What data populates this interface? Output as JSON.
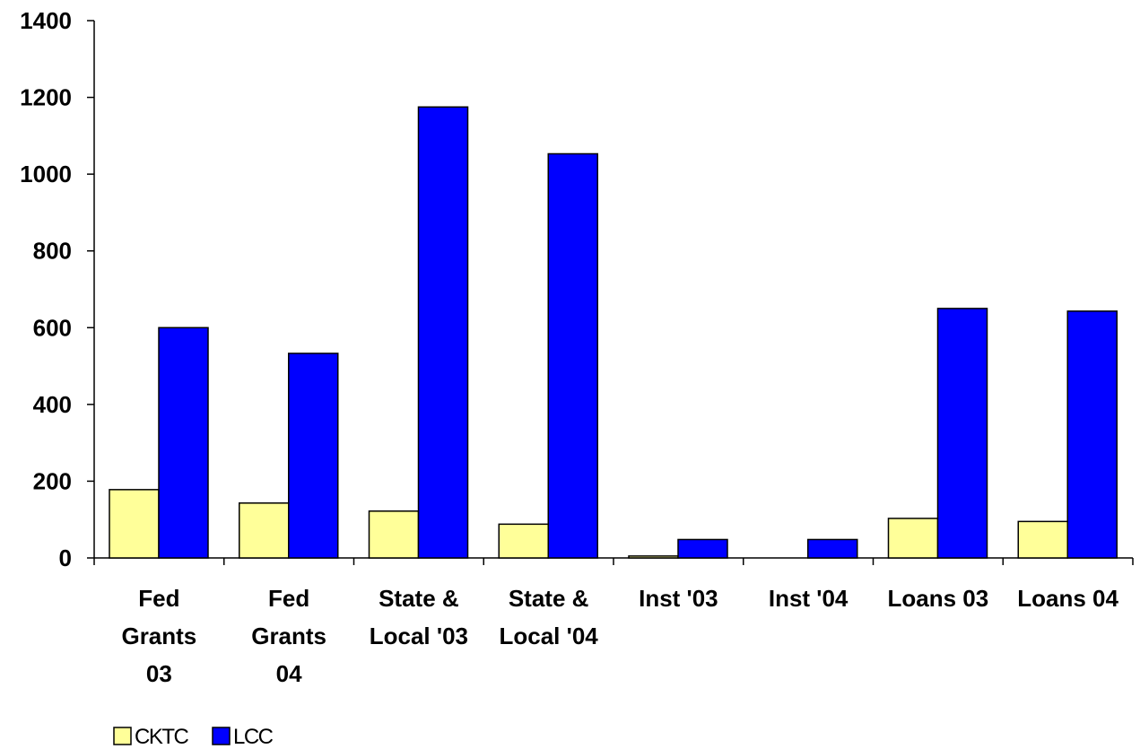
{
  "chart_data": {
    "type": "bar",
    "categories": [
      [
        "Fed",
        "Grants",
        "03"
      ],
      [
        "Fed",
        "Grants",
        "04"
      ],
      [
        "State &",
        "Local '03"
      ],
      [
        "State &",
        "Local '04"
      ],
      [
        "Inst '03"
      ],
      [
        "Inst '04"
      ],
      [
        "Loans 03"
      ],
      [
        "Loans 04"
      ]
    ],
    "series": [
      {
        "name": "CKTC",
        "color": "#ffff99",
        "values": [
          178,
          143,
          122,
          88,
          5,
          0,
          103,
          95
        ]
      },
      {
        "name": "LCC",
        "color": "#0000ff",
        "values": [
          600,
          533,
          1175,
          1053,
          48,
          48,
          650,
          643
        ]
      }
    ],
    "yticks": [
      "0",
      "200",
      "400",
      "600",
      "800",
      "1000",
      "1200",
      "1400"
    ],
    "ylim": [
      0,
      1400
    ],
    "title": "",
    "xlabel": "",
    "ylabel": "",
    "grid": false,
    "legend_position": "bottom-left"
  }
}
